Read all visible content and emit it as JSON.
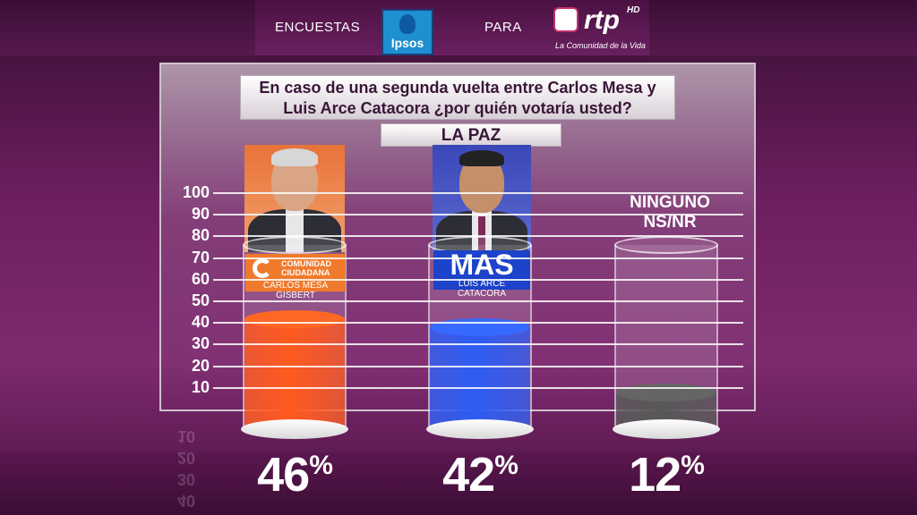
{
  "header": {
    "left_text": "ENCUESTAS",
    "ipsos_label": "Ipsos",
    "middle_text": "PARA",
    "rtp_label": "rtp",
    "rtp_hd": "HD",
    "rtp_tagline": "La Comunidad de la Vida"
  },
  "question": {
    "line1": "En caso de una segunda vuelta entre Carlos Mesa y",
    "line2": "Luis Arce Catacora ¿por quién votaría usted?"
  },
  "region": "LA PAZ",
  "candidates": [
    {
      "party_line1": "COMUNIDAD",
      "party_line2": "CIUDADANA",
      "name": "CARLOS MESA GISBERT"
    },
    {
      "party": "MAS",
      "name": "LUIS ARCE CATACORA"
    }
  ],
  "ninguno": {
    "line1": "NINGUNO",
    "line2": "NS/NR"
  },
  "reflection_ticks": [
    "10",
    "20",
    "30",
    "40"
  ],
  "chart_data": {
    "type": "bar",
    "categories": [
      "Carlos Mesa Gisbert",
      "Luis Arce Catacora",
      "Ninguno NS/NR"
    ],
    "values": [
      46,
      42,
      12
    ],
    "value_labels": [
      "46",
      "42",
      "12"
    ],
    "value_suffix": "%",
    "ylim": [
      0,
      100
    ],
    "yticks": [
      "10",
      "20",
      "30",
      "40",
      "50",
      "60",
      "70",
      "80",
      "90",
      "100"
    ],
    "grid": true,
    "colors": [
      "#ff5a1f",
      "#2f5cf2",
      "#585858"
    ]
  }
}
